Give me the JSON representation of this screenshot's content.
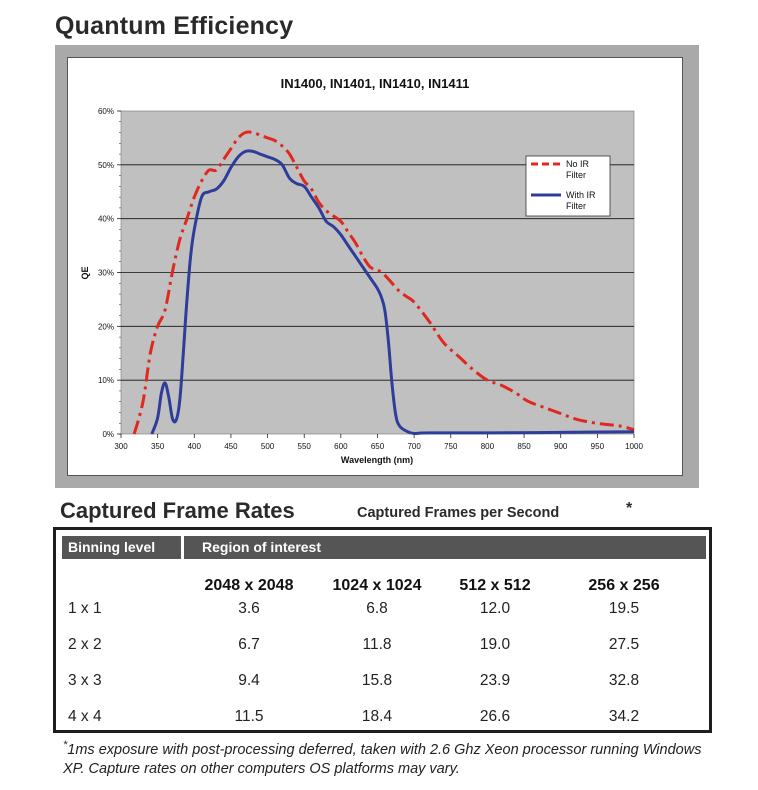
{
  "heading_qe": "Quantum Efficiency",
  "chart_data": {
    "type": "line",
    "title": "IN1400, IN1401, IN1410, IN1411",
    "xlabel": "Wavelength (nm)",
    "ylabel": "QE",
    "xlim": [
      300,
      1000
    ],
    "ylim": [
      0,
      60
    ],
    "x_ticks": [
      "300",
      "350",
      "400",
      "450",
      "500",
      "550",
      "600",
      "650",
      "700",
      "750",
      "800",
      "850",
      "900",
      "950",
      "1000"
    ],
    "y_ticks": [
      "0%",
      "10%",
      "20%",
      "30%",
      "40%",
      "50%",
      "60%"
    ],
    "grid": "horizontal",
    "legend_position": "top-right",
    "series": [
      {
        "name": "No IR Filter",
        "color": "#e0281f",
        "style": "dashed",
        "x": [
          318,
          330,
          340,
          350,
          360,
          370,
          380,
          390,
          400,
          410,
          420,
          430,
          440,
          450,
          460,
          470,
          480,
          490,
          500,
          510,
          520,
          530,
          540,
          550,
          560,
          570,
          580,
          590,
          600,
          610,
          620,
          630,
          640,
          650,
          660,
          670,
          680,
          690,
          700,
          720,
          740,
          760,
          780,
          800,
          820,
          840,
          850,
          860,
          880,
          900,
          920,
          940,
          960,
          980,
          1000
        ],
        "y": [
          0,
          6,
          15,
          20,
          23,
          30,
          36,
          40,
          44,
          47,
          49,
          49,
          51,
          53,
          55,
          56,
          56,
          55.5,
          55,
          54.5,
          53.5,
          52,
          49.5,
          47,
          45.5,
          43,
          41.5,
          40.5,
          39.5,
          37.5,
          35.5,
          33,
          31,
          30.5,
          29.5,
          28,
          26.5,
          25.5,
          24.5,
          21,
          17,
          14.5,
          12,
          10,
          9,
          7.5,
          6.5,
          5.8,
          4.8,
          3.8,
          2.8,
          2.2,
          1.8,
          1.5,
          0.8
        ]
      },
      {
        "name": "With IR Filter",
        "color": "#2e3d9a",
        "style": "solid",
        "x": [
          342,
          350,
          355,
          360,
          365,
          370,
          375,
          380,
          385,
          390,
          395,
          400,
          410,
          420,
          430,
          440,
          450,
          460,
          470,
          480,
          490,
          500,
          510,
          520,
          530,
          540,
          550,
          560,
          570,
          580,
          590,
          600,
          610,
          620,
          630,
          640,
          650,
          655,
          660,
          665,
          670,
          675,
          680,
          690,
          700,
          720,
          800,
          900,
          1000
        ],
        "y": [
          0,
          3,
          7.5,
          9.5,
          7,
          3,
          2.5,
          6,
          15,
          25,
          33,
          38,
          44,
          45,
          45.5,
          47,
          49.5,
          51.5,
          52.5,
          52.5,
          52,
          51.5,
          51,
          50,
          47.5,
          46.5,
          46,
          44,
          42,
          39.5,
          38.5,
          37,
          35,
          33,
          31,
          29,
          27,
          25.5,
          23,
          17,
          9,
          3.5,
          1.5,
          0.5,
          0.1,
          0.2,
          0.2,
          0.3,
          0.4
        ]
      }
    ]
  },
  "heading_frames": "Captured Frame Rates",
  "frames_subtitle": "Captured Frames per Second",
  "frames_star": "*",
  "table": {
    "header_left": "Binning level",
    "header_right": "Region of interest",
    "columns": [
      "2048 x 2048",
      "1024 x 1024",
      "512 x 512",
      "256 x 256"
    ],
    "rows": [
      {
        "label": "1 x 1",
        "values": [
          "3.6",
          "6.8",
          "12.0",
          "19.5"
        ]
      },
      {
        "label": "2 x 2",
        "values": [
          "6.7",
          "11.8",
          "19.0",
          "27.5"
        ]
      },
      {
        "label": "3 x 3",
        "values": [
          "9.4",
          "15.8",
          "23.9",
          "32.8"
        ]
      },
      {
        "label": "4 x 4",
        "values": [
          "11.5",
          "18.4",
          "26.6",
          "34.2"
        ]
      }
    ]
  },
  "footnote_star": "*",
  "footnote": "1ms exposure with post-processing deferred, taken with 2.6 Ghz Xeon processor running Windows XP. Capture rates on other computers OS platforms may vary."
}
